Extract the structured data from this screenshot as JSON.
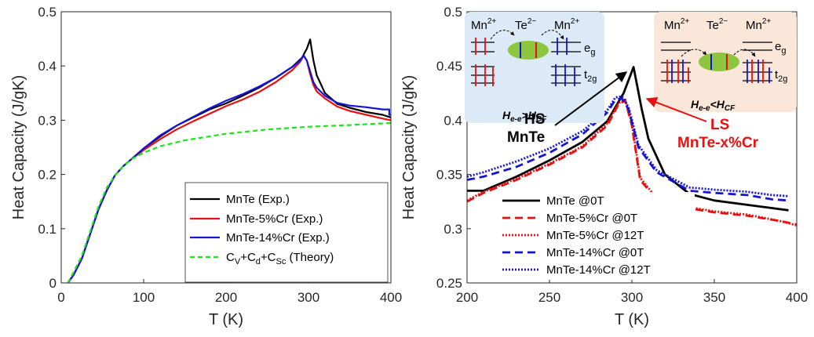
{
  "colors": {
    "black": "#000000",
    "red": "#e81010",
    "blue": "#1414d6",
    "green": "#19e619",
    "hs_box": "#dce9f6",
    "ls_box": "#fbe6da",
    "orbital_green": "#8cc63f"
  },
  "chart_data": [
    {
      "type": "line",
      "xlabel": "T (K)",
      "ylabel": "Heat Capacity (J/gK)",
      "xlim": [
        0,
        400
      ],
      "ylim": [
        0,
        0.5
      ],
      "xticks": [
        "0",
        "100",
        "200",
        "300",
        "400"
      ],
      "yticks": [
        "0",
        "0.1",
        "0.2",
        "0.3",
        "0.4",
        "0.5"
      ],
      "grid": false,
      "legend_position": "bottom-right",
      "series": [
        {
          "name": "MnTe (Exp.)",
          "color": "#000000",
          "dash": "solid",
          "x": [
            8,
            15,
            25,
            35,
            45,
            55,
            65,
            75,
            85,
            100,
            120,
            140,
            160,
            180,
            200,
            220,
            240,
            260,
            280,
            292,
            298,
            302,
            306,
            310,
            320,
            335,
            350,
            370,
            390,
            400
          ],
          "y": [
            0.0,
            0.015,
            0.045,
            0.09,
            0.135,
            0.17,
            0.198,
            0.215,
            0.228,
            0.248,
            0.27,
            0.29,
            0.305,
            0.32,
            0.331,
            0.345,
            0.36,
            0.378,
            0.398,
            0.415,
            0.432,
            0.449,
            0.41,
            0.383,
            0.35,
            0.33,
            0.323,
            0.315,
            0.31,
            0.305
          ]
        },
        {
          "name": "MnTe-5%Cr (Exp.)",
          "color": "#e81010",
          "dash": "solid",
          "x": [
            8,
            15,
            25,
            35,
            45,
            55,
            65,
            75,
            85,
            100,
            120,
            140,
            160,
            180,
            200,
            220,
            240,
            260,
            280,
            290,
            294,
            298,
            302,
            306,
            310,
            320,
            335,
            350,
            370,
            390,
            400
          ],
          "y": [
            0.0,
            0.015,
            0.045,
            0.09,
            0.135,
            0.17,
            0.198,
            0.215,
            0.228,
            0.245,
            0.265,
            0.283,
            0.298,
            0.312,
            0.326,
            0.338,
            0.352,
            0.37,
            0.392,
            0.408,
            0.419,
            0.41,
            0.385,
            0.365,
            0.353,
            0.34,
            0.325,
            0.317,
            0.31,
            0.303,
            0.3
          ]
        },
        {
          "name": "MnTe-14%Cr (Exp.)",
          "color": "#1414d6",
          "dash": "solid",
          "x": [
            8,
            15,
            25,
            35,
            45,
            55,
            65,
            75,
            85,
            100,
            120,
            140,
            160,
            180,
            200,
            220,
            240,
            260,
            280,
            290,
            294,
            298,
            302,
            306,
            310,
            320,
            335,
            350,
            370,
            390,
            398,
            398,
            400
          ],
          "y": [
            0.0,
            0.015,
            0.045,
            0.09,
            0.135,
            0.17,
            0.198,
            0.215,
            0.228,
            0.248,
            0.272,
            0.29,
            0.306,
            0.322,
            0.336,
            0.348,
            0.362,
            0.378,
            0.398,
            0.41,
            0.42,
            0.41,
            0.39,
            0.37,
            0.36,
            0.345,
            0.332,
            0.327,
            0.324,
            0.32,
            0.32,
            0.31,
            0.31
          ]
        },
        {
          "name": "C_V+C_d+C_Sc (Theory)",
          "color": "#19e619",
          "dash": "dashed",
          "x": [
            8,
            15,
            25,
            35,
            45,
            55,
            65,
            75,
            85,
            100,
            120,
            150,
            200,
            250,
            300,
            350,
            400
          ],
          "y": [
            0.0,
            0.02,
            0.05,
            0.095,
            0.14,
            0.175,
            0.198,
            0.215,
            0.228,
            0.24,
            0.252,
            0.263,
            0.275,
            0.283,
            0.288,
            0.291,
            0.295
          ]
        }
      ]
    },
    {
      "type": "line",
      "xlabel": "T (K)",
      "ylabel": "Heat Capacity (J/gK)",
      "xlim": [
        200,
        400
      ],
      "ylim": [
        0.25,
        0.5
      ],
      "xticks": [
        "200",
        "250",
        "300",
        "350",
        "400"
      ],
      "yticks": [
        "0.25",
        "0.3",
        "0.35",
        "0.4",
        "0.45",
        "0.5"
      ],
      "grid": false,
      "legend_position": "bottom-left",
      "series": [
        {
          "name": "MnTe @0T",
          "color": "#000000",
          "dash": "solid",
          "x": [
            200,
            210,
            230,
            250,
            270,
            285,
            295,
            301,
            306,
            310,
            320,
            335,
            350,
            370,
            385,
            395
          ],
          "y": [
            0.335,
            0.335,
            0.348,
            0.363,
            0.38,
            0.399,
            0.425,
            0.449,
            0.41,
            0.383,
            0.35,
            0.332,
            0.326,
            0.322,
            0.319,
            0.317
          ]
        },
        {
          "name": "MnTe-5%Cr @0T",
          "color": "#e81010",
          "dash": "dashed",
          "x": [
            200,
            210,
            230,
            250,
            270,
            285,
            292,
            296,
            300,
            305,
            315,
            330,
            350,
            370,
            390,
            400
          ],
          "y": [
            0.325,
            0.333,
            0.345,
            0.359,
            0.375,
            0.395,
            0.415,
            0.418,
            0.395,
            0.345,
            0.327,
            0.32,
            0.315,
            0.312,
            0.307,
            0.304
          ]
        },
        {
          "name": "MnTe-5%Cr @12T",
          "color": "#e81010",
          "dash": "dotted",
          "x": [
            200,
            210,
            230,
            250,
            270,
            285,
            292,
            296,
            300,
            305,
            315,
            330,
            350,
            370,
            390,
            400
          ],
          "y": [
            0.326,
            0.334,
            0.346,
            0.36,
            0.376,
            0.397,
            0.416,
            0.419,
            0.397,
            0.347,
            0.328,
            0.321,
            0.316,
            0.313,
            0.307,
            0.303
          ]
        },
        {
          "name": "MnTe-14%Cr @0T",
          "color": "#1414d6",
          "dash": "dashed",
          "x": [
            200,
            210,
            230,
            250,
            270,
            285,
            290,
            294,
            298,
            304,
            315,
            335,
            350,
            370,
            385,
            395
          ],
          "y": [
            0.345,
            0.348,
            0.357,
            0.37,
            0.387,
            0.407,
            0.419,
            0.42,
            0.41,
            0.375,
            0.352,
            0.335,
            0.333,
            0.331,
            0.327,
            0.326
          ]
        },
        {
          "name": "MnTe-14%Cr @12T",
          "color": "#1414d6",
          "dash": "dotted",
          "x": [
            200,
            210,
            230,
            250,
            270,
            285,
            290,
            294,
            298,
            304,
            315,
            335,
            350,
            370,
            385,
            395
          ],
          "y": [
            0.348,
            0.352,
            0.362,
            0.374,
            0.39,
            0.409,
            0.421,
            0.422,
            0.412,
            0.377,
            0.354,
            0.338,
            0.336,
            0.334,
            0.331,
            0.33
          ]
        }
      ],
      "annotations": {
        "hs_label": "HS",
        "mnte_label": "MnTe",
        "ls_label": "LS",
        "cr_label": "MnTe-x%Cr"
      }
    }
  ],
  "insets": {
    "hs": {
      "ion1": "Mn",
      "ion1_sup": "2+",
      "ion2": "Te",
      "ion2_sup": "2−",
      "ion3": "Mn",
      "ion3_sup": "2+",
      "eg": "e",
      "eg_sub": "g",
      "t2g": "t",
      "t2g_sub": "2g",
      "rel_H": "H",
      "rel_sub1": "e-e",
      "rel_op": ">",
      "rel_H2": "H",
      "rel_sub2": "CF"
    },
    "ls": {
      "ion1": "Mn",
      "ion1_sup": "2+",
      "ion2": "Te",
      "ion2_sup": "2−",
      "ion3": "Mn",
      "ion3_sup": "2+",
      "eg": "e",
      "eg_sub": "g",
      "t2g": "t",
      "t2g_sub": "2g",
      "rel_H": "H",
      "rel_sub1": "e-e",
      "rel_op": "<",
      "rel_H2": "H",
      "rel_sub2": "CF"
    }
  },
  "legend_theory_parts": {
    "c1": "C",
    "s1": "V",
    "p1": "+C",
    "s2": "d",
    "p2": "+C",
    "s3": "Sc",
    "tail": " (Theory)"
  }
}
